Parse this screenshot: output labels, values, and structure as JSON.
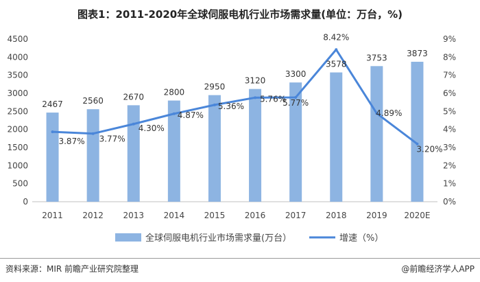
{
  "title": "图表1：2011-2020年全球伺服电机行业市场需求量(单位：万台，%)",
  "footer": {
    "source": "资料来源：MIR 前瞻产业研究院整理",
    "brand": "@前瞻经济学人APP"
  },
  "colors": {
    "bar": "#8db4e2",
    "line": "#4a86d9",
    "axis": "#bfbfbf"
  },
  "chart_data": {
    "type": "bar",
    "title": "图表1：2011-2020年全球伺服电机行业市场需求量(单位：万台，%)",
    "categories": [
      "2011",
      "2012",
      "2013",
      "2014",
      "2015",
      "2016",
      "2017",
      "2018",
      "2019",
      "2020E"
    ],
    "series": [
      {
        "name": "全球伺服电机行业市场需求量(万台）",
        "type": "bar",
        "axis": "left",
        "values": [
          2467,
          2560,
          2670,
          2800,
          2950,
          3120,
          3300,
          3578,
          3753,
          3873
        ],
        "labels": [
          "2467",
          "2560",
          "2670",
          "2800",
          "2950",
          "3120",
          "3300",
          "3578",
          "3753",
          "3873"
        ]
      },
      {
        "name": "增速（%）",
        "type": "line",
        "axis": "right",
        "values": [
          3.87,
          3.77,
          4.3,
          4.87,
          5.36,
          5.76,
          5.77,
          8.42,
          4.89,
          3.2
        ],
        "labels": [
          "3.87%",
          "3.77%",
          "4.30%",
          "4.87%",
          "5.36%",
          "5.76%",
          "5.77%",
          "8.42%",
          "4.89%",
          "3.20%"
        ]
      }
    ],
    "y_left": {
      "ylim": [
        0,
        4500
      ],
      "ticks": [
        "0",
        "500",
        "1000",
        "1500",
        "2000",
        "2500",
        "3000",
        "3500",
        "4000",
        "4500"
      ]
    },
    "y_right": {
      "ylim": [
        0,
        9
      ],
      "ticks": [
        "0%",
        "1%",
        "2%",
        "3%",
        "4%",
        "5%",
        "6%",
        "7%",
        "8%",
        "9%"
      ]
    },
    "grid": false,
    "legend": "bottom"
  }
}
